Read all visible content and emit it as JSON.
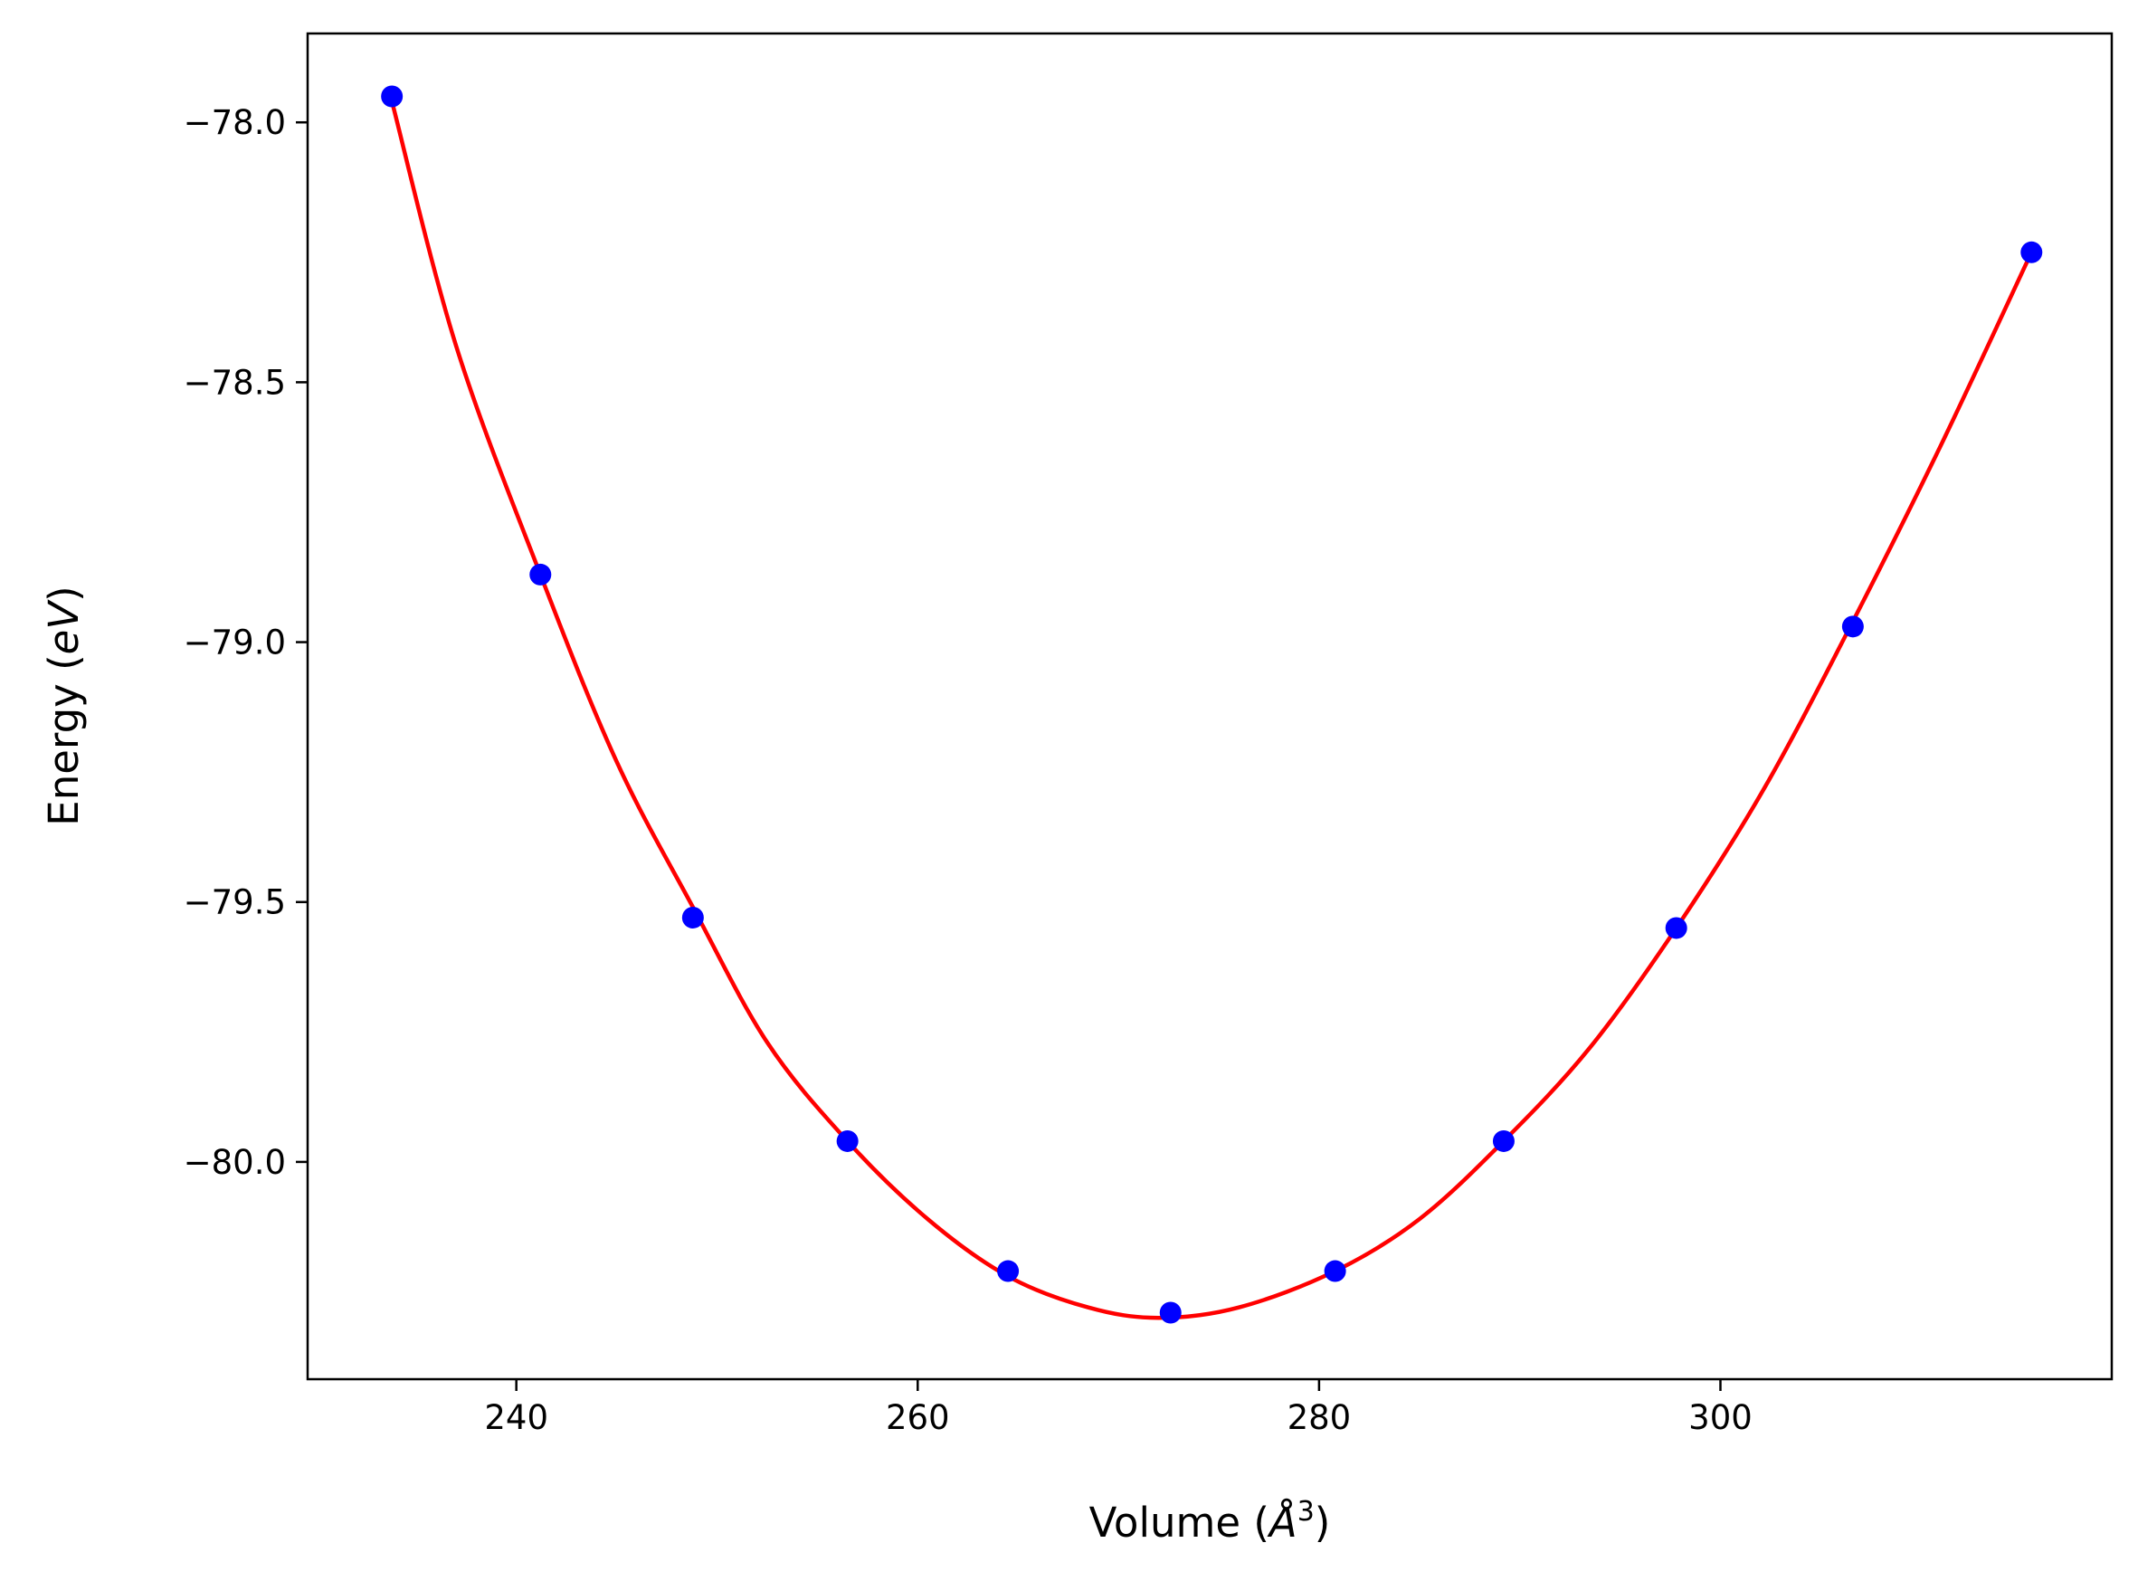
{
  "chart_data": {
    "type": "line",
    "title": "",
    "xlabel": "Volume",
    "xlabel_unit": "Å",
    "xlabel_unit_exp": "3",
    "ylabel": "Energy",
    "ylabel_unit": "eV",
    "xlim": [
      229.6,
      319.5
    ],
    "ylim": [
      -80.418,
      -77.829
    ],
    "x_ticks": [
      240,
      260,
      280,
      300
    ],
    "x_tick_labels": [
      "240",
      "260",
      "280",
      "300"
    ],
    "y_ticks": [
      -78.0,
      -78.5,
      -79.0,
      -79.5,
      -80.0
    ],
    "y_tick_labels": [
      "−78.0",
      "−78.5",
      "−79.0",
      "−79.5",
      "−80.0"
    ],
    "grid": false,
    "series": [
      {
        "kind": "points",
        "color": "#0000ff",
        "x": [
          233.8,
          241.2,
          248.8,
          256.5,
          264.5,
          272.6,
          280.8,
          289.2,
          297.8,
          306.6,
          315.5
        ],
        "y": [
          -77.95,
          -78.87,
          -79.53,
          -79.96,
          -80.21,
          -80.29,
          -80.21,
          -79.96,
          -79.55,
          -78.97,
          -78.25
        ]
      },
      {
        "kind": "fit-curve",
        "color": "#ff0000",
        "x": [
          233.8,
          237.0,
          241.2,
          245.0,
          248.8,
          252.5,
          256.5,
          260.5,
          264.5,
          268.5,
          272.0,
          276.0,
          280.8,
          285.0,
          289.2,
          293.5,
          297.8,
          302.2,
          306.6,
          311.0,
          315.5
        ],
        "y": [
          -77.96,
          -78.43,
          -78.87,
          -79.23,
          -79.51,
          -79.77,
          -79.96,
          -80.11,
          -80.22,
          -80.28,
          -80.3,
          -80.28,
          -80.21,
          -80.11,
          -79.96,
          -79.78,
          -79.55,
          -79.28,
          -78.96,
          -78.62,
          -78.25
        ]
      }
    ]
  }
}
